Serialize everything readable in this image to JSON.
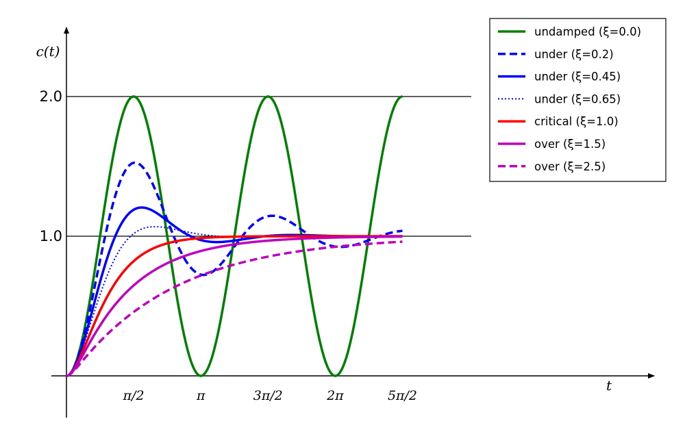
{
  "chart_data": {
    "type": "line",
    "xlabel": "t",
    "ylabel": "c(t)",
    "xlim": [
      0,
      8.9
    ],
    "ylim": [
      -0.3,
      2.5
    ],
    "x_ticks": [
      {
        "value": 1.5708,
        "label": "π/2"
      },
      {
        "value": 3.1416,
        "label": "π"
      },
      {
        "value": 4.7124,
        "label": "3π/2"
      },
      {
        "value": 6.2832,
        "label": "2π"
      },
      {
        "value": 7.854,
        "label": "5π/2"
      }
    ],
    "y_ticks": [
      {
        "value": 1.0,
        "label": "1.0"
      },
      {
        "value": 2.0,
        "label": "2.0"
      }
    ],
    "reference_lines_y": [
      1.0,
      2.0
    ],
    "x_range": [
      0,
      7.854
    ],
    "legend_position": "top-right",
    "series": [
      {
        "name": "undamped (ξ=0.0)",
        "zeta": 0.0,
        "color": "#008000",
        "style": "solid"
      },
      {
        "name": "under (ξ=0.2)",
        "zeta": 0.2,
        "color": "#0000ff",
        "style": "dashed"
      },
      {
        "name": "under (ξ=0.45)",
        "zeta": 0.45,
        "color": "#0000ff",
        "style": "solid"
      },
      {
        "name": "under (ξ=0.65)",
        "zeta": 0.65,
        "color": "#0000ff",
        "style": "dotted"
      },
      {
        "name": "critical (ξ=1.0)",
        "zeta": 1.0,
        "color": "#ff0000",
        "style": "solid"
      },
      {
        "name": "over (ξ=1.5)",
        "zeta": 1.5,
        "color": "#bf00bf",
        "style": "solid"
      },
      {
        "name": "over (ξ=2.5)",
        "zeta": 2.5,
        "color": "#bf00bf",
        "style": "dashed"
      }
    ]
  }
}
